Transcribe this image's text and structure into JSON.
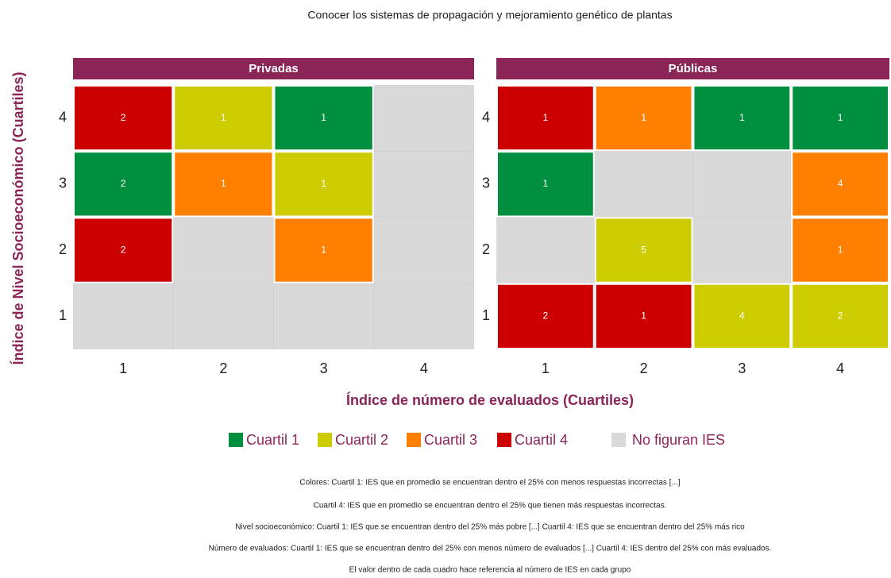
{
  "chart_data": {
    "type": "heatmap",
    "title": "Conocer los sistemas de propagación y mejoramiento genético de plantas",
    "xlabel": "Índice de número de evaluados (Cuartiles)",
    "ylabel": "Índice de Nivel Socioeconómico (Cuartiles)",
    "xticks": [
      1,
      2,
      3,
      4
    ],
    "yticks": [
      1,
      2,
      3,
      4
    ],
    "legend": [
      {
        "name": "Cuartil 1",
        "color": "#008f3e"
      },
      {
        "name": "Cuartil 2",
        "color": "#cccc00"
      },
      {
        "name": "Cuartil 3",
        "color": "#ff7f00"
      },
      {
        "name": "Cuartil 4",
        "color": "#cc0000"
      },
      {
        "name": "No figuran IES",
        "color": "#d9d9d9"
      }
    ],
    "panels": [
      {
        "name": "Privadas",
        "cells": [
          {
            "x": 1,
            "y": 4,
            "level": "Cuartil 4",
            "value": 2
          },
          {
            "x": 2,
            "y": 4,
            "level": "Cuartil 2",
            "value": 1
          },
          {
            "x": 3,
            "y": 4,
            "level": "Cuartil 1",
            "value": 1
          },
          {
            "x": 1,
            "y": 3,
            "level": "Cuartil 1",
            "value": 2
          },
          {
            "x": 2,
            "y": 3,
            "level": "Cuartil 3",
            "value": 1
          },
          {
            "x": 3,
            "y": 3,
            "level": "Cuartil 2",
            "value": 1
          },
          {
            "x": 1,
            "y": 2,
            "level": "Cuartil 4",
            "value": 2
          },
          {
            "x": 3,
            "y": 2,
            "level": "Cuartil 3",
            "value": 1
          }
        ]
      },
      {
        "name": "Públicas",
        "cells": [
          {
            "x": 1,
            "y": 4,
            "level": "Cuartil 4",
            "value": 1
          },
          {
            "x": 2,
            "y": 4,
            "level": "Cuartil 3",
            "value": 1
          },
          {
            "x": 3,
            "y": 4,
            "level": "Cuartil 1",
            "value": 1
          },
          {
            "x": 4,
            "y": 4,
            "level": "Cuartil 1",
            "value": 1
          },
          {
            "x": 1,
            "y": 3,
            "level": "Cuartil 1",
            "value": 1
          },
          {
            "x": 4,
            "y": 3,
            "level": "Cuartil 3",
            "value": 4
          },
          {
            "x": 2,
            "y": 2,
            "level": "Cuartil 2",
            "value": 5
          },
          {
            "x": 4,
            "y": 2,
            "level": "Cuartil 3",
            "value": 1
          },
          {
            "x": 1,
            "y": 1,
            "level": "Cuartil 4",
            "value": 2
          },
          {
            "x": 2,
            "y": 1,
            "level": "Cuartil 4",
            "value": 1
          },
          {
            "x": 3,
            "y": 1,
            "level": "Cuartil 2",
            "value": 4
          },
          {
            "x": 4,
            "y": 1,
            "level": "Cuartil 2",
            "value": 2
          }
        ]
      }
    ],
    "notes": [
      "Colores: Cuartil 1:  IES que en promedio se encuentran dentro el 25% con menos respuestas incorrectas [...]",
      "Cuartil 4: IES que en promedio se encuentran dentro el 25% que tienen más respuestas incorrectas.",
      "Nivel socioeconómico: Cuartil 1: IES que se encuentran dentro del 25% más pobre [...] Cuartil 4: IES que se encuentran dentro del 25% más rico",
      "Número de evaluados: Cuartil 1: IES que se encuentran dentro del 25% con menos número de evaluados [...] Cuartil 4: IES dentro del 25% con más evaluados.",
      "El valor dentro de cada cuadro hace referencia al número de IES en cada grupo"
    ]
  }
}
